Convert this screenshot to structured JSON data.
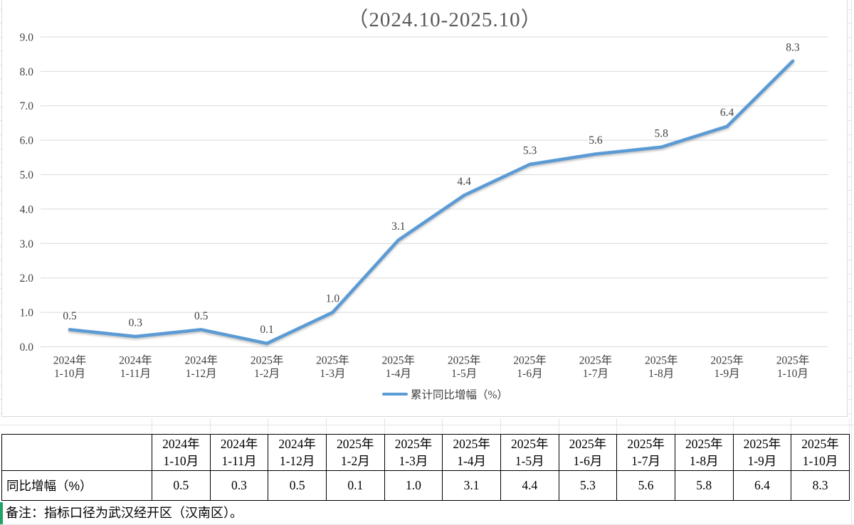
{
  "chart_data": {
    "type": "line",
    "title": "（2024.10-2025.10）",
    "categories": [
      "2024年 1-10月",
      "2024年 1-11月",
      "2024年 1-12月",
      "2025年 1-2月",
      "2025年 1-3月",
      "2025年 1-4月",
      "2025年 1-5月",
      "2025年 1-6月",
      "2025年 1-7月",
      "2025年 1-8月",
      "2025年 1-9月",
      "2025年 1-10月"
    ],
    "category_lines": [
      [
        "2024年",
        "1-10月"
      ],
      [
        "2024年",
        "1-11月"
      ],
      [
        "2024年",
        "1-12月"
      ],
      [
        "2025年",
        "1-2月"
      ],
      [
        "2025年",
        "1-3月"
      ],
      [
        "2025年",
        "1-4月"
      ],
      [
        "2025年",
        "1-5月"
      ],
      [
        "2025年",
        "1-6月"
      ],
      [
        "2025年",
        "1-7月"
      ],
      [
        "2025年",
        "1-8月"
      ],
      [
        "2025年",
        "1-9月"
      ],
      [
        "2025年",
        "1-10月"
      ]
    ],
    "series": [
      {
        "name": "累计同比增幅（%）",
        "values": [
          0.5,
          0.3,
          0.5,
          0.1,
          1.0,
          3.1,
          4.4,
          5.3,
          5.6,
          5.8,
          6.4,
          8.3
        ]
      }
    ],
    "value_labels": [
      "0.5",
      "0.3",
      "0.5",
      "0.1",
      "1.0",
      "3.1",
      "4.4",
      "5.3",
      "5.6",
      "5.8",
      "6.4",
      "8.3"
    ],
    "xlabel": "",
    "ylabel": "",
    "ylim": [
      0,
      9
    ],
    "y_tick_labels": [
      "0.0",
      "1.0",
      "2.0",
      "3.0",
      "4.0",
      "5.0",
      "6.0",
      "7.0",
      "8.0",
      "9.0"
    ],
    "grid": "horizontal",
    "legend_position": "bottom"
  },
  "legend": {
    "label": "累计同比增幅（%）"
  },
  "table": {
    "row_label": "同比增幅（%）",
    "column_lines": [
      [
        "2024年",
        "1-10月"
      ],
      [
        "2024年",
        "1-11月"
      ],
      [
        "2024年",
        "1-12月"
      ],
      [
        "2025年",
        "1-2月"
      ],
      [
        "2025年",
        "1-3月"
      ],
      [
        "2025年",
        "1-4月"
      ],
      [
        "2025年",
        "1-5月"
      ],
      [
        "2025年",
        "1-6月"
      ],
      [
        "2025年",
        "1-7月"
      ],
      [
        "2025年",
        "1-8月"
      ],
      [
        "2025年",
        "1-9月"
      ],
      [
        "2025年",
        "1-10月"
      ]
    ],
    "values": [
      "0.5",
      "0.3",
      "0.5",
      "0.1",
      "1.0",
      "3.1",
      "4.4",
      "5.3",
      "5.6",
      "5.8",
      "6.4",
      "8.3"
    ]
  },
  "note": {
    "text": "备注：指标口径为武汉经开区（汉南区）。"
  },
  "colors": {
    "line": "#5B9BD5",
    "grid": "#D9D9D9",
    "axis_text": "#404040",
    "title_text": "#595959",
    "table_border": "#000000",
    "note_accent": "#21A366"
  }
}
